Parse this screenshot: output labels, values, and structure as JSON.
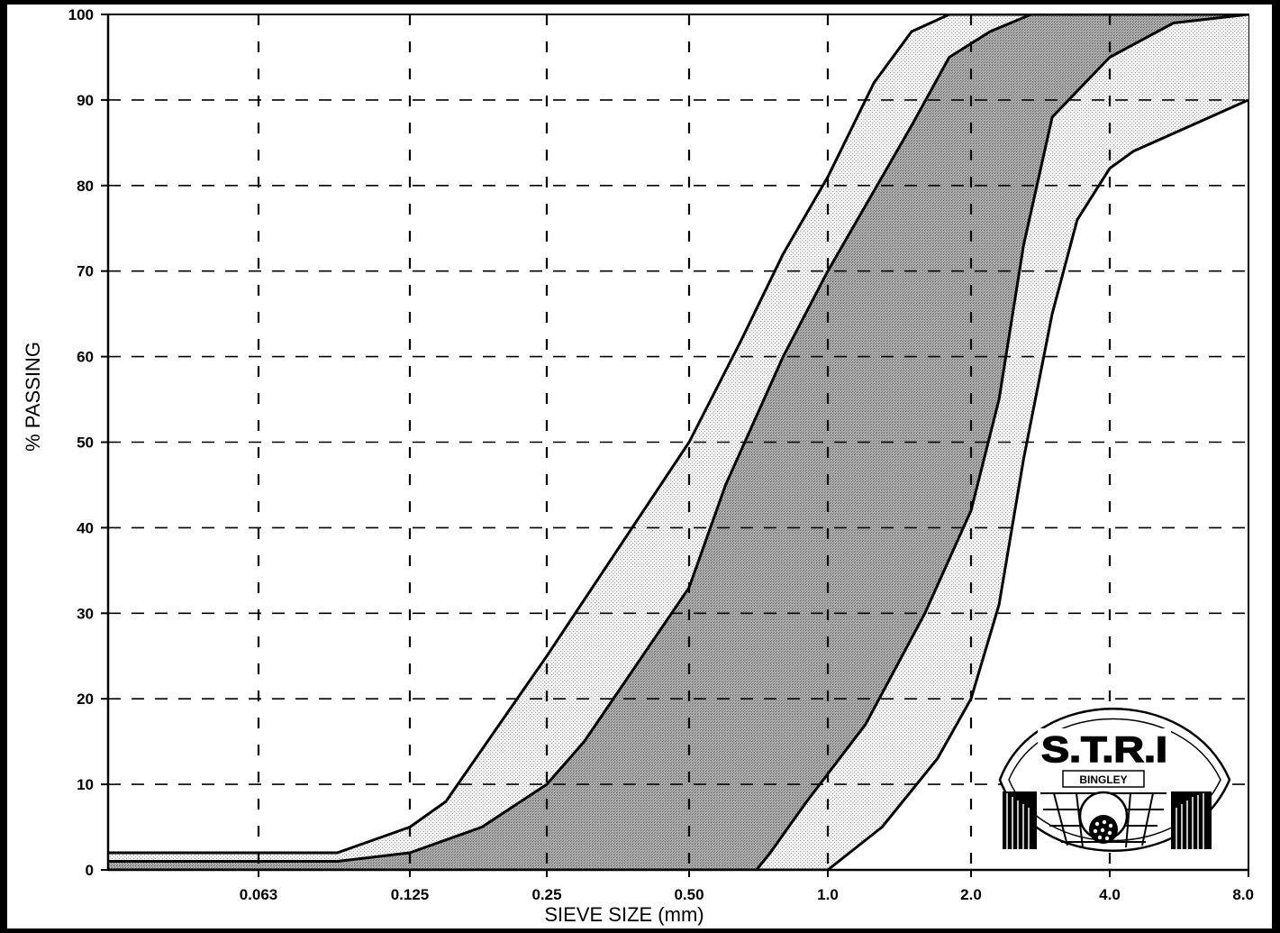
{
  "chart_data": {
    "type": "area",
    "xscale": "log",
    "xlabel": "SIEVE SIZE (mm)",
    "ylabel": "% PASSING",
    "ylim": [
      0,
      100
    ],
    "xlim": [
      0.063,
      8.0
    ],
    "x_ticks": [
      0.063,
      0.125,
      0.25,
      0.5,
      1.0,
      2.0,
      4.0,
      8.0
    ],
    "x_tick_labels": [
      "0.063",
      "0.125",
      "0.25",
      "0.50",
      "1.0",
      "2.0",
      "4.0",
      "8.0"
    ],
    "y_ticks": [
      0,
      10,
      20,
      30,
      40,
      50,
      60,
      70,
      80,
      90,
      100
    ],
    "y_tick_labels": [
      "0",
      "10",
      "20",
      "30",
      "40",
      "50",
      "60",
      "70",
      "80",
      "90",
      "100"
    ],
    "grid": "dashed",
    "series": [
      {
        "id": "curve1",
        "points": [
          [
            0.063,
            2
          ],
          [
            0.09,
            2
          ],
          [
            0.125,
            5
          ],
          [
            0.15,
            8
          ],
          [
            0.25,
            25
          ],
          [
            0.5,
            50
          ],
          [
            0.65,
            62
          ],
          [
            0.8,
            72
          ],
          [
            1.0,
            81
          ],
          [
            1.25,
            92
          ],
          [
            1.5,
            98
          ],
          [
            1.8,
            100
          ]
        ]
      },
      {
        "id": "curve2",
        "points": [
          [
            0.063,
            1
          ],
          [
            0.09,
            1
          ],
          [
            0.125,
            2
          ],
          [
            0.18,
            5
          ],
          [
            0.25,
            10
          ],
          [
            0.3,
            15
          ],
          [
            0.5,
            33
          ],
          [
            0.6,
            45
          ],
          [
            0.8,
            60
          ],
          [
            1.0,
            70
          ],
          [
            1.5,
            87
          ],
          [
            1.8,
            95
          ],
          [
            2.2,
            98
          ],
          [
            2.7,
            100
          ]
        ]
      },
      {
        "id": "curve3",
        "points": [
          [
            0.063,
            0
          ],
          [
            0.4,
            0
          ],
          [
            0.7,
            0
          ],
          [
            0.75,
            2
          ],
          [
            0.9,
            8
          ],
          [
            1.2,
            17
          ],
          [
            1.6,
            30
          ],
          [
            2.0,
            42
          ],
          [
            2.3,
            55
          ],
          [
            2.6,
            73
          ],
          [
            3.0,
            88
          ],
          [
            4.0,
            95
          ],
          [
            5.5,
            99
          ],
          [
            8.0,
            100
          ]
        ]
      },
      {
        "id": "curve4",
        "points": [
          [
            0.063,
            0
          ],
          [
            1.0,
            0
          ],
          [
            1.3,
            5
          ],
          [
            1.7,
            13
          ],
          [
            2.0,
            20
          ],
          [
            2.3,
            31
          ],
          [
            2.6,
            48
          ],
          [
            3.0,
            65
          ],
          [
            3.4,
            76
          ],
          [
            4.0,
            82
          ],
          [
            4.5,
            84
          ],
          [
            8.0,
            90
          ]
        ]
      }
    ],
    "bands": [
      {
        "between": [
          "curve1",
          "curve2"
        ],
        "fill": "light"
      },
      {
        "between": [
          "curve2",
          "curve3"
        ],
        "fill": "dark"
      },
      {
        "between": [
          "curve3",
          "curve4"
        ],
        "fill": "light"
      }
    ]
  },
  "logo": {
    "name": "S.T.R.I",
    "text": "S.T.R.I",
    "subtext": "BINGLEY"
  },
  "colors": {
    "page": "#ffffcc",
    "plot": "#ffffff",
    "frame": "#000000",
    "band_light": "#e4e4e4",
    "band_dark": "#9a9a9a"
  }
}
